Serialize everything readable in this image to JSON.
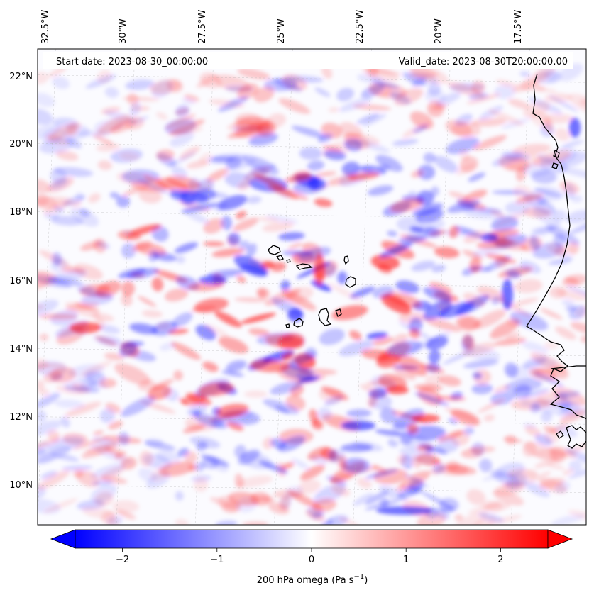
{
  "header": {
    "start_date": "Start date: 2023-08-30_00:00:00",
    "valid_date": "Valid_date: 2023-08-30T20:00:00.00"
  },
  "map": {
    "lon_labels": [
      {
        "lon": -32.5,
        "label": "32.5°W"
      },
      {
        "lon": -30.0,
        "label": "30°W"
      },
      {
        "lon": -27.5,
        "label": "27.5°W"
      },
      {
        "lon": -25.0,
        "label": "25°W"
      },
      {
        "lon": -22.5,
        "label": "22.5°W"
      },
      {
        "lon": -20.0,
        "label": "20°W"
      },
      {
        "lon": -17.5,
        "label": "17.5°W"
      }
    ],
    "lat_labels": [
      {
        "lat": 22,
        "label": "22°N"
      },
      {
        "lat": 20,
        "label": "20°N"
      },
      {
        "lat": 18,
        "label": "18°N"
      },
      {
        "lat": 16,
        "label": "16°N"
      },
      {
        "lat": 14,
        "label": "14°N"
      },
      {
        "lat": 12,
        "label": "12°N"
      },
      {
        "lat": 10,
        "label": "10°N"
      }
    ],
    "field": "200 hPa omega",
    "colormap": "bwr",
    "colors": {
      "negative": "#0000ff",
      "zero": "#ffffff",
      "positive": "#ff0000",
      "coastline": "#000000",
      "grid": "#b0b0b0"
    }
  },
  "colorbar": {
    "min": -2.5,
    "max": 2.5,
    "ticks": [
      {
        "value": -2,
        "label": "−2"
      },
      {
        "value": -1,
        "label": "−1"
      },
      {
        "value": 0,
        "label": "0"
      },
      {
        "value": 1,
        "label": "1"
      },
      {
        "value": 2,
        "label": "2"
      }
    ],
    "label_main": "200 hPa omega (Pa s",
    "label_sup": "−1",
    "label_end": ")",
    "extend": "both"
  }
}
